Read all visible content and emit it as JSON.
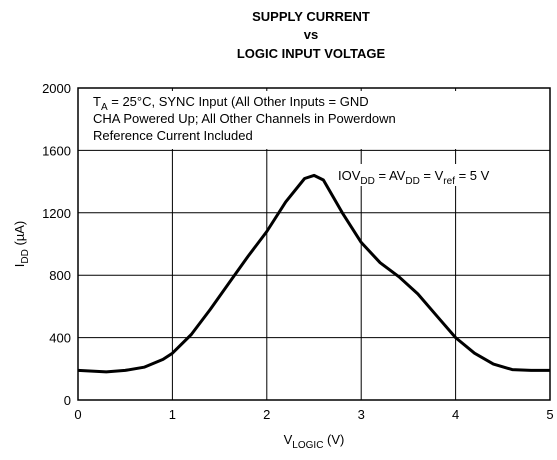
{
  "chart_data": {
    "type": "line",
    "title": [
      "SUPPLY CURRENT",
      "vs",
      "LOGIC INPUT VOLTAGE"
    ],
    "x_label": [
      "V",
      "LOGIC",
      " (V)"
    ],
    "y_label": [
      "I",
      "DD",
      "  (µA)"
    ],
    "annotations": [
      [
        "T",
        "A",
        " = 25°C, SYNC Input (All Other Inputs = GND"
      ],
      [
        "CHA Powered Up; All Other Channels in Powerdown"
      ],
      [
        "Reference Current Included"
      ],
      [
        "IOV",
        "DD",
        " =  AV",
        "DD",
        " = V",
        "ref",
        " = 5 V"
      ]
    ],
    "x": [
      0,
      0.3,
      0.5,
      0.7,
      0.9,
      1.0,
      1.2,
      1.4,
      1.6,
      1.8,
      2.0,
      2.2,
      2.4,
      2.5,
      2.6,
      2.8,
      3.0,
      3.2,
      3.4,
      3.6,
      3.8,
      4.0,
      4.2,
      4.4,
      4.6,
      4.8,
      5.0
    ],
    "values": [
      190,
      180,
      190,
      210,
      260,
      300,
      420,
      580,
      750,
      920,
      1080,
      1270,
      1420,
      1440,
      1410,
      1200,
      1010,
      880,
      790,
      680,
      540,
      400,
      300,
      230,
      195,
      190,
      190
    ],
    "color": "#000000",
    "xlim": [
      0,
      5
    ],
    "xticks": [
      0,
      1,
      2,
      3,
      4,
      5
    ],
    "ylim": [
      0,
      2000
    ],
    "yticks": [
      0,
      400,
      800,
      1200,
      1600,
      2000
    ],
    "grid": true
  }
}
